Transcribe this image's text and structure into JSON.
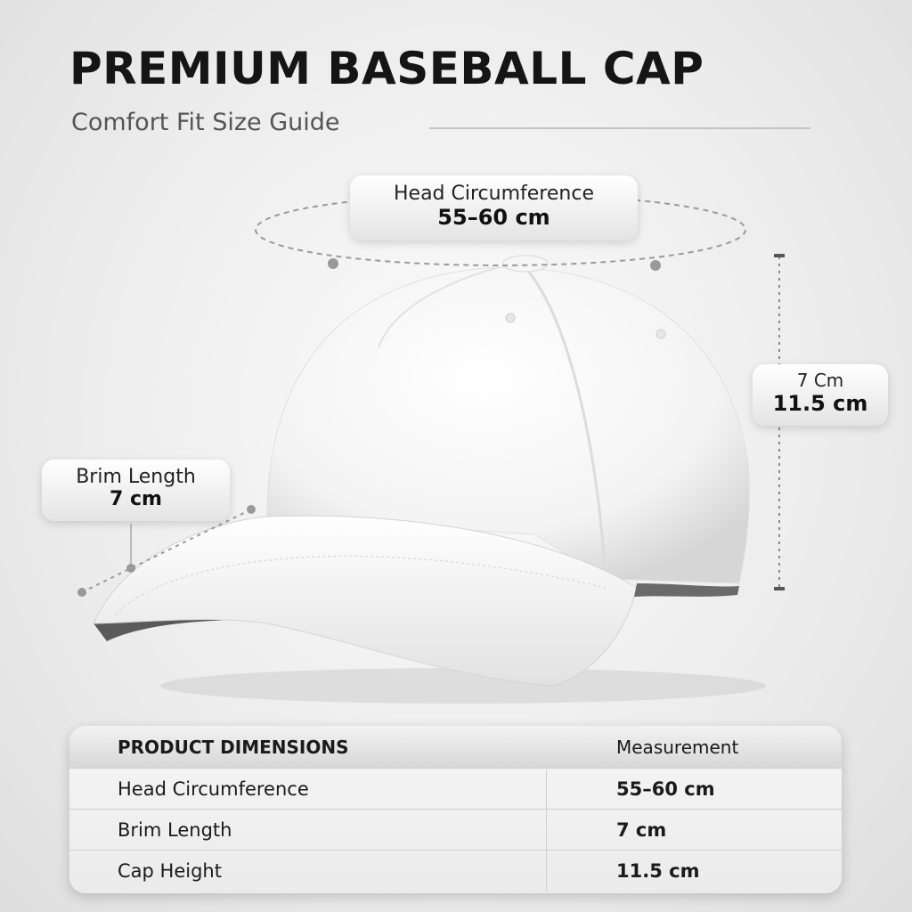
{
  "header": {
    "title": "PREMIUM BASEBALL CAP",
    "subtitle": "Comfort Fit Size Guide"
  },
  "callouts": {
    "head": {
      "label": "Head Circumference",
      "value": "55–60 cm"
    },
    "height": {
      "label": "7 Cm",
      "value": "11.5 cm"
    },
    "brim": {
      "label": "Brim Length",
      "value": "7 cm"
    }
  },
  "table": {
    "headers": [
      "PRODUCT DIMENSIONS",
      "Measurement"
    ],
    "rows": [
      {
        "name": "Head Circumference",
        "value": "55–60 cm"
      },
      {
        "name": "Brim Length",
        "value": "7 cm"
      },
      {
        "name": "Cap Height",
        "value": "11.5 cm"
      }
    ]
  },
  "colors": {
    "cap": "#ffffff",
    "accent": "#151515",
    "under_brim": "#555555"
  }
}
